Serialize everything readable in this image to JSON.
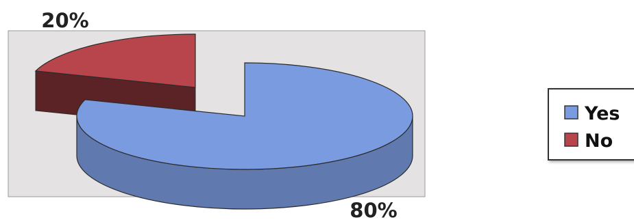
{
  "chart_data": {
    "type": "pie",
    "style": "3d-exploded",
    "categories": [
      "Yes",
      "No"
    ],
    "values": [
      80,
      20
    ],
    "unit": "%",
    "data_labels": [
      "80%",
      "20%"
    ],
    "exploded": [
      "No"
    ],
    "legend": {
      "position": "right",
      "entries": [
        "Yes",
        "No"
      ]
    },
    "colors": {
      "Yes": "#7b9be0",
      "No": "#b8454c"
    },
    "plot_background": "#e4e2e2",
    "title": "",
    "xlabel": "",
    "ylabel": ""
  }
}
